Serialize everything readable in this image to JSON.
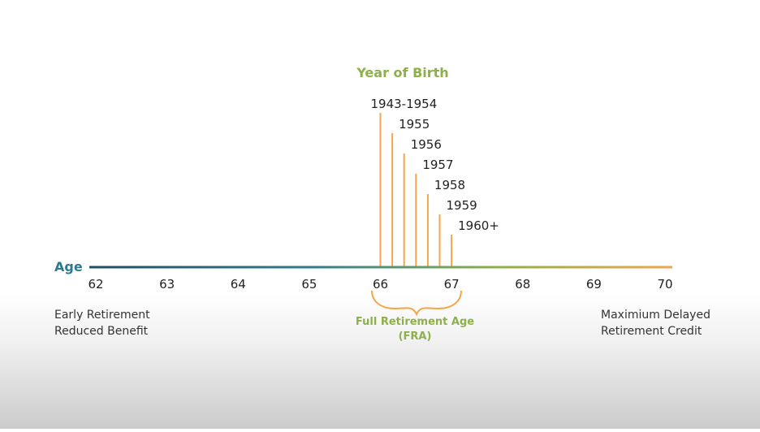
{
  "title": "Year of Birth",
  "axis_label": "Age",
  "ages": [
    "62",
    "63",
    "64",
    "65",
    "66",
    "67",
    "68",
    "69",
    "70"
  ],
  "birth_years": [
    {
      "label": "1943-1954",
      "fra_years": 66.0
    },
    {
      "label": "1955",
      "fra_years": 66.1667
    },
    {
      "label": "1956",
      "fra_years": 66.3333
    },
    {
      "label": "1957",
      "fra_years": 66.5
    },
    {
      "label": "1958",
      "fra_years": 66.6667
    },
    {
      "label": "1959",
      "fra_years": 66.8333
    },
    {
      "label": "1960+",
      "fra_years": 67.0
    }
  ],
  "left_note": {
    "line1": "Early Retirement",
    "line2": "Reduced Benefit"
  },
  "right_note": {
    "line1": "Maximium Delayed",
    "line2": "Retirement Credit"
  },
  "fra": {
    "line1": "Full Retirement Age",
    "line2": "(FRA)"
  },
  "colors": {
    "title_green": "#8db04a",
    "axis_label_teal": "#2c7a8c",
    "orange": "#f5a54a",
    "text": "#222222",
    "note_text": "#333333",
    "axis_start": "#1f4e63",
    "axis_mid": "#2e7e8e",
    "axis_green": "#8db04a",
    "axis_end": "#f3a44d"
  }
}
